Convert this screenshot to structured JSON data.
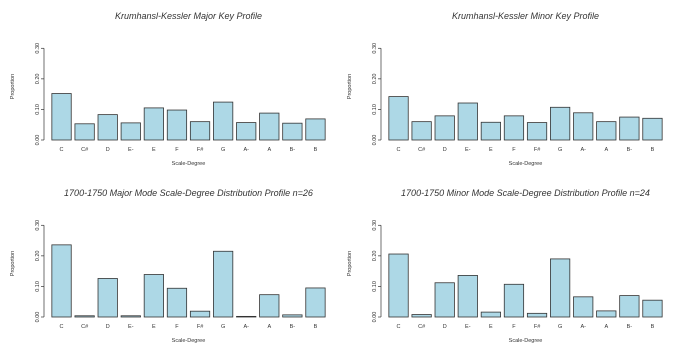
{
  "chart_data": [
    {
      "type": "bar",
      "title": "Krumhansl-Kessler Major Key Profile",
      "xlabel": "Scale-Degree",
      "ylabel": "Proportion",
      "categories": [
        "C",
        "C#",
        "D",
        "E-",
        "E",
        "F",
        "F#",
        "G",
        "A-",
        "A",
        "B-",
        "B"
      ],
      "values": [
        0.152,
        0.053,
        0.083,
        0.056,
        0.105,
        0.098,
        0.06,
        0.124,
        0.057,
        0.088,
        0.055,
        0.069
      ],
      "ylim": [
        0,
        0.35
      ],
      "yticks": [
        "0.00",
        "0.10",
        "0.20",
        "0.30"
      ]
    },
    {
      "type": "bar",
      "title": "Krumhansl-Kessler Minor Key Profile",
      "xlabel": "Scale-Degree",
      "ylabel": "Proportion",
      "categories": [
        "C",
        "C#",
        "D",
        "E-",
        "E",
        "F",
        "F#",
        "G",
        "A-",
        "A",
        "B-",
        "B"
      ],
      "values": [
        0.142,
        0.06,
        0.079,
        0.121,
        0.058,
        0.079,
        0.057,
        0.107,
        0.089,
        0.06,
        0.075,
        0.071
      ],
      "ylim": [
        0,
        0.35
      ],
      "yticks": [
        "0.00",
        "0.10",
        "0.20",
        "0.30"
      ]
    },
    {
      "type": "bar",
      "title": "1700-1750 Major Mode Scale-Degree Distribution Profile n=26",
      "xlabel": "Scale-Degree",
      "ylabel": "Proportion",
      "categories": [
        "C",
        "C#",
        "D",
        "E-",
        "E",
        "F",
        "F#",
        "G",
        "A-",
        "A",
        "B-",
        "B"
      ],
      "values": [
        0.236,
        0.004,
        0.126,
        0.004,
        0.139,
        0.094,
        0.019,
        0.215,
        0.002,
        0.073,
        0.007,
        0.095
      ],
      "ylim": [
        0,
        0.35
      ],
      "yticks": [
        "0.00",
        "0.10",
        "0.20",
        "0.30"
      ]
    },
    {
      "type": "bar",
      "title": "1700-1750 Minor Mode Scale-Degree Distribution Profile n=24",
      "xlabel": "Scale-Degree",
      "ylabel": "Proportion",
      "categories": [
        "C",
        "C#",
        "D",
        "E-",
        "E",
        "F",
        "F#",
        "G",
        "A-",
        "A",
        "B-",
        "B"
      ],
      "values": [
        0.206,
        0.008,
        0.112,
        0.136,
        0.016,
        0.107,
        0.012,
        0.19,
        0.066,
        0.02,
        0.07,
        0.055
      ],
      "ylim": [
        0,
        0.35
      ],
      "yticks": [
        "0.00",
        "0.10",
        "0.20",
        "0.30"
      ]
    }
  ]
}
